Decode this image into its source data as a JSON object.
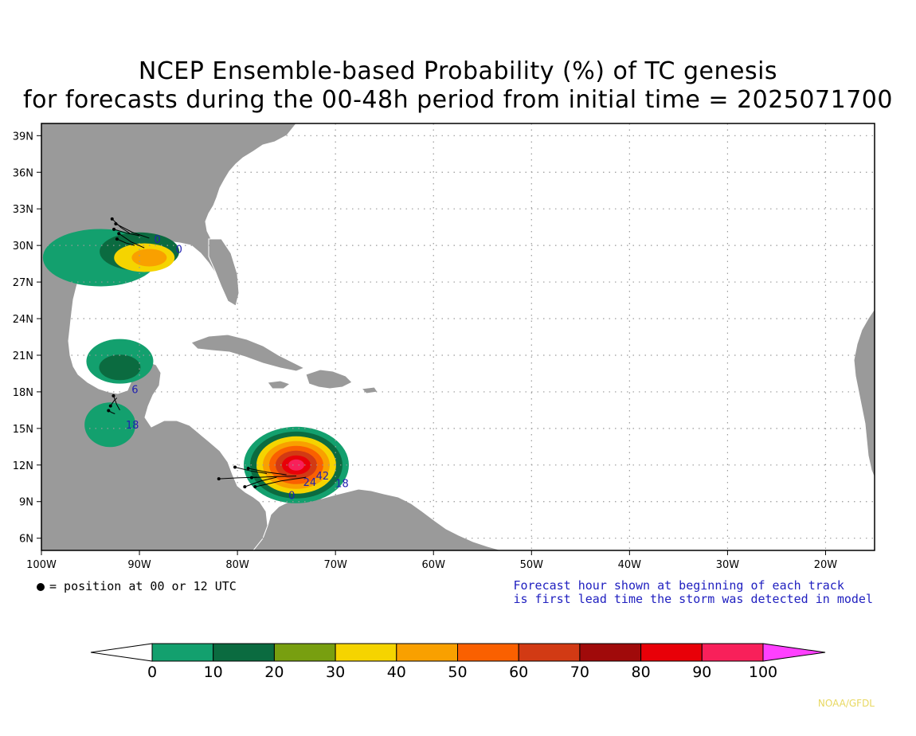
{
  "title": {
    "line1": "NCEP Ensemble-based Probability (%) of TC genesis",
    "line2": "for forecasts during the 00-48h period from initial time = 2025071700"
  },
  "map": {
    "lon_range": [
      -100,
      -15
    ],
    "lat_range": [
      5,
      40
    ],
    "lat_ticks": [
      "39N",
      "36N",
      "33N",
      "30N",
      "27N",
      "24N",
      "21N",
      "18N",
      "15N",
      "12N",
      "9N",
      "6N"
    ],
    "lat_tick_values": [
      39,
      36,
      33,
      30,
      27,
      24,
      21,
      18,
      15,
      12,
      9,
      6
    ],
    "lon_ticks": [
      "100W",
      "90W",
      "80W",
      "70W",
      "60W",
      "50W",
      "40W",
      "30W",
      "20W"
    ],
    "lon_tick_values": [
      -100,
      -90,
      -80,
      -70,
      -60,
      -50,
      -40,
      -30,
      -20
    ],
    "grid": "dotted",
    "land_color": "#9a9a9a",
    "ocean_color": "#ffffff"
  },
  "colorbar": {
    "labels": [
      "0",
      "10",
      "20",
      "30",
      "40",
      "50",
      "60",
      "70",
      "80",
      "90",
      "100"
    ],
    "colors": [
      "#13a06e",
      "#0b6b40",
      "#789f10",
      "#f5d400",
      "#f9a000",
      "#fa6000",
      "#d23a14",
      "#a00a0a",
      "#e80008",
      "#f8205a"
    ],
    "under_color": "#ffffff",
    "over_color": "#ff40ff"
  },
  "genesis_areas": [
    {
      "region": "Gulf of Mexico",
      "bins": [
        [
          -94,
          29,
          "#13a06e"
        ],
        [
          -90,
          29.5,
          "#0b6b40"
        ],
        [
          -89.5,
          29,
          "#f5d400"
        ],
        [
          -89,
          29,
          "#f9a000"
        ]
      ]
    },
    {
      "region": "Bay of Campeche",
      "bins": [
        [
          -92,
          20.5,
          "#13a06e"
        ],
        [
          -92,
          20,
          "#0b6b40"
        ]
      ]
    },
    {
      "region": "Gulf of Honduras",
      "bins": [
        [
          -93,
          15.3,
          "#13a06e"
        ]
      ]
    },
    {
      "region": "Caribbean",
      "bins": [
        [
          -74,
          12,
          "#13a06e"
        ],
        [
          -74,
          12,
          "#0b6b40"
        ],
        [
          -74,
          12,
          "#f5d400"
        ],
        [
          -74,
          12,
          "#f9a000"
        ],
        [
          -74,
          12,
          "#fa6000"
        ],
        [
          -74,
          12,
          "#d23a14"
        ],
        [
          -74,
          12,
          "#e80008"
        ],
        [
          -74,
          12,
          "#f8205a"
        ]
      ]
    }
  ],
  "track_labels": [
    {
      "text": "6",
      "lon": -90.8,
      "lat": 17.9
    },
    {
      "text": "18",
      "lon": -91.4,
      "lat": 15.0
    },
    {
      "text": "0",
      "lon": -88.5,
      "lat": 30.2
    },
    {
      "text": "0",
      "lon": -86.3,
      "lat": 29.4
    },
    {
      "text": "0",
      "lon": -74.8,
      "lat": 9.2
    },
    {
      "text": "24",
      "lon": -73.3,
      "lat": 10.3
    },
    {
      "text": "42",
      "lon": -72.0,
      "lat": 10.8
    },
    {
      "text": "18",
      "lon": -70.0,
      "lat": 10.2
    }
  ],
  "legend": {
    "position_note": "= position at 00 or 12 UTC",
    "forecast_note_line1": "Forecast hour shown at beginning of each track",
    "forecast_note_line2": "is first lead time the storm was detected in model"
  },
  "credit": "NOAA/GFDL"
}
